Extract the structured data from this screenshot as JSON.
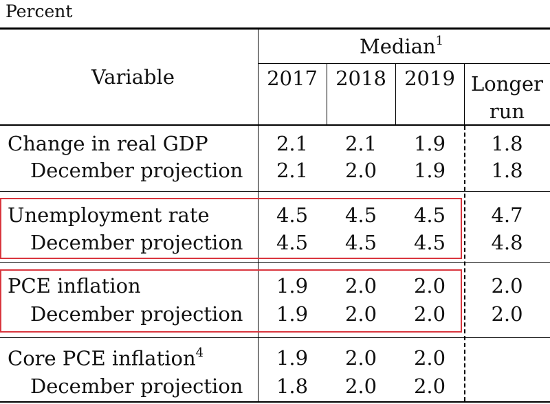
{
  "unit_label": "Percent",
  "header": {
    "variable": "Variable",
    "median": "Median",
    "median_footnote": "1",
    "years": [
      "2017",
      "2018",
      "2019"
    ],
    "longer_run_line1": "Longer",
    "longer_run_line2": "run"
  },
  "rows": [
    {
      "label": "Change in real GDP",
      "sup": "",
      "values": [
        "2.1",
        "2.1",
        "1.9",
        "1.8"
      ],
      "sub_label": "December projection",
      "sub_values": [
        "2.1",
        "2.0",
        "1.9",
        "1.8"
      ]
    },
    {
      "label": "Unemployment rate",
      "sup": "",
      "values": [
        "4.5",
        "4.5",
        "4.5",
        "4.7"
      ],
      "sub_label": "December projection",
      "sub_values": [
        "4.5",
        "4.5",
        "4.5",
        "4.8"
      ]
    },
    {
      "label": "PCE inflation",
      "sup": "",
      "values": [
        "1.9",
        "2.0",
        "2.0",
        "2.0"
      ],
      "sub_label": "December projection",
      "sub_values": [
        "1.9",
        "2.0",
        "2.0",
        "2.0"
      ]
    },
    {
      "label": "Core PCE inflation",
      "sup": "4",
      "values": [
        "1.9",
        "2.0",
        "2.0",
        ""
      ],
      "sub_label": "December projection",
      "sub_values": [
        "1.8",
        "2.0",
        "2.0",
        ""
      ]
    }
  ],
  "highlight_color": "#d9363e"
}
